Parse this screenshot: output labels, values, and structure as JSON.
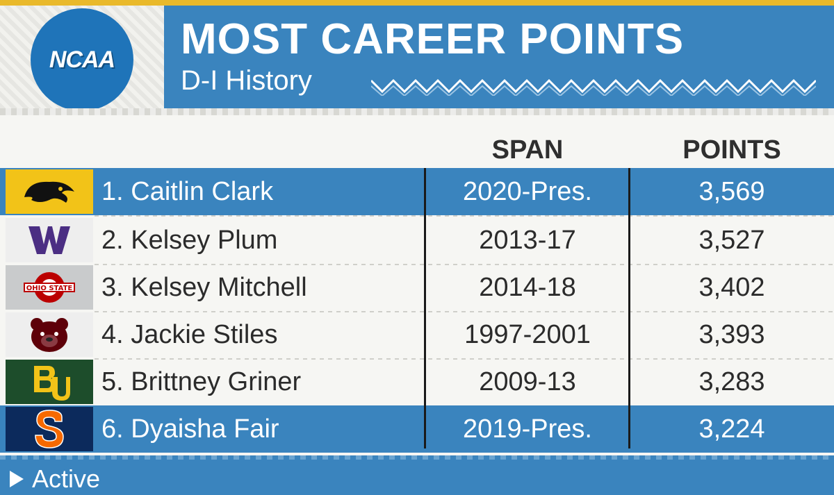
{
  "header": {
    "logo_text": "NCAA",
    "title": "MOST CAREER POINTS",
    "subtitle": "D-I History"
  },
  "columns": {
    "span": "SPAN",
    "points": "POINTS"
  },
  "rows": [
    {
      "rank_name": "1. Caitlin Clark",
      "span": "2020-Pres.",
      "points": "3,569",
      "active": true,
      "team_icon": "iowa-hawkeye-icon",
      "logo_bg": "#f2c318"
    },
    {
      "rank_name": "2. Kelsey Plum",
      "span": "2013-17",
      "points": "3,527",
      "active": false,
      "team_icon": "washington-w-icon",
      "logo_bg": "#eeeeee"
    },
    {
      "rank_name": "3. Kelsey Mitchell",
      "span": "2014-18",
      "points": "3,402",
      "active": false,
      "team_icon": "ohio-state-icon",
      "logo_bg": "#c9cbcc"
    },
    {
      "rank_name": "4. Jackie Stiles",
      "span": "1997-2001",
      "points": "3,393",
      "active": false,
      "team_icon": "missouri-state-bear-icon",
      "logo_bg": "#eeeeee"
    },
    {
      "rank_name": "5. Brittney Griner",
      "span": "2009-13",
      "points": "3,283",
      "active": false,
      "team_icon": "baylor-bu-icon",
      "logo_bg": "#1d4d2b"
    },
    {
      "rank_name": "6. Dyaisha Fair",
      "span": "2019-Pres.",
      "points": "3,224",
      "active": true,
      "team_icon": "syracuse-s-icon",
      "logo_bg": "#0c2a5c"
    }
  ],
  "footer": {
    "label": "Active"
  },
  "colors": {
    "accent_blue": "#3a84be",
    "ncaa_blue": "#1f74b9",
    "gold_strip": "#e9b92b"
  }
}
